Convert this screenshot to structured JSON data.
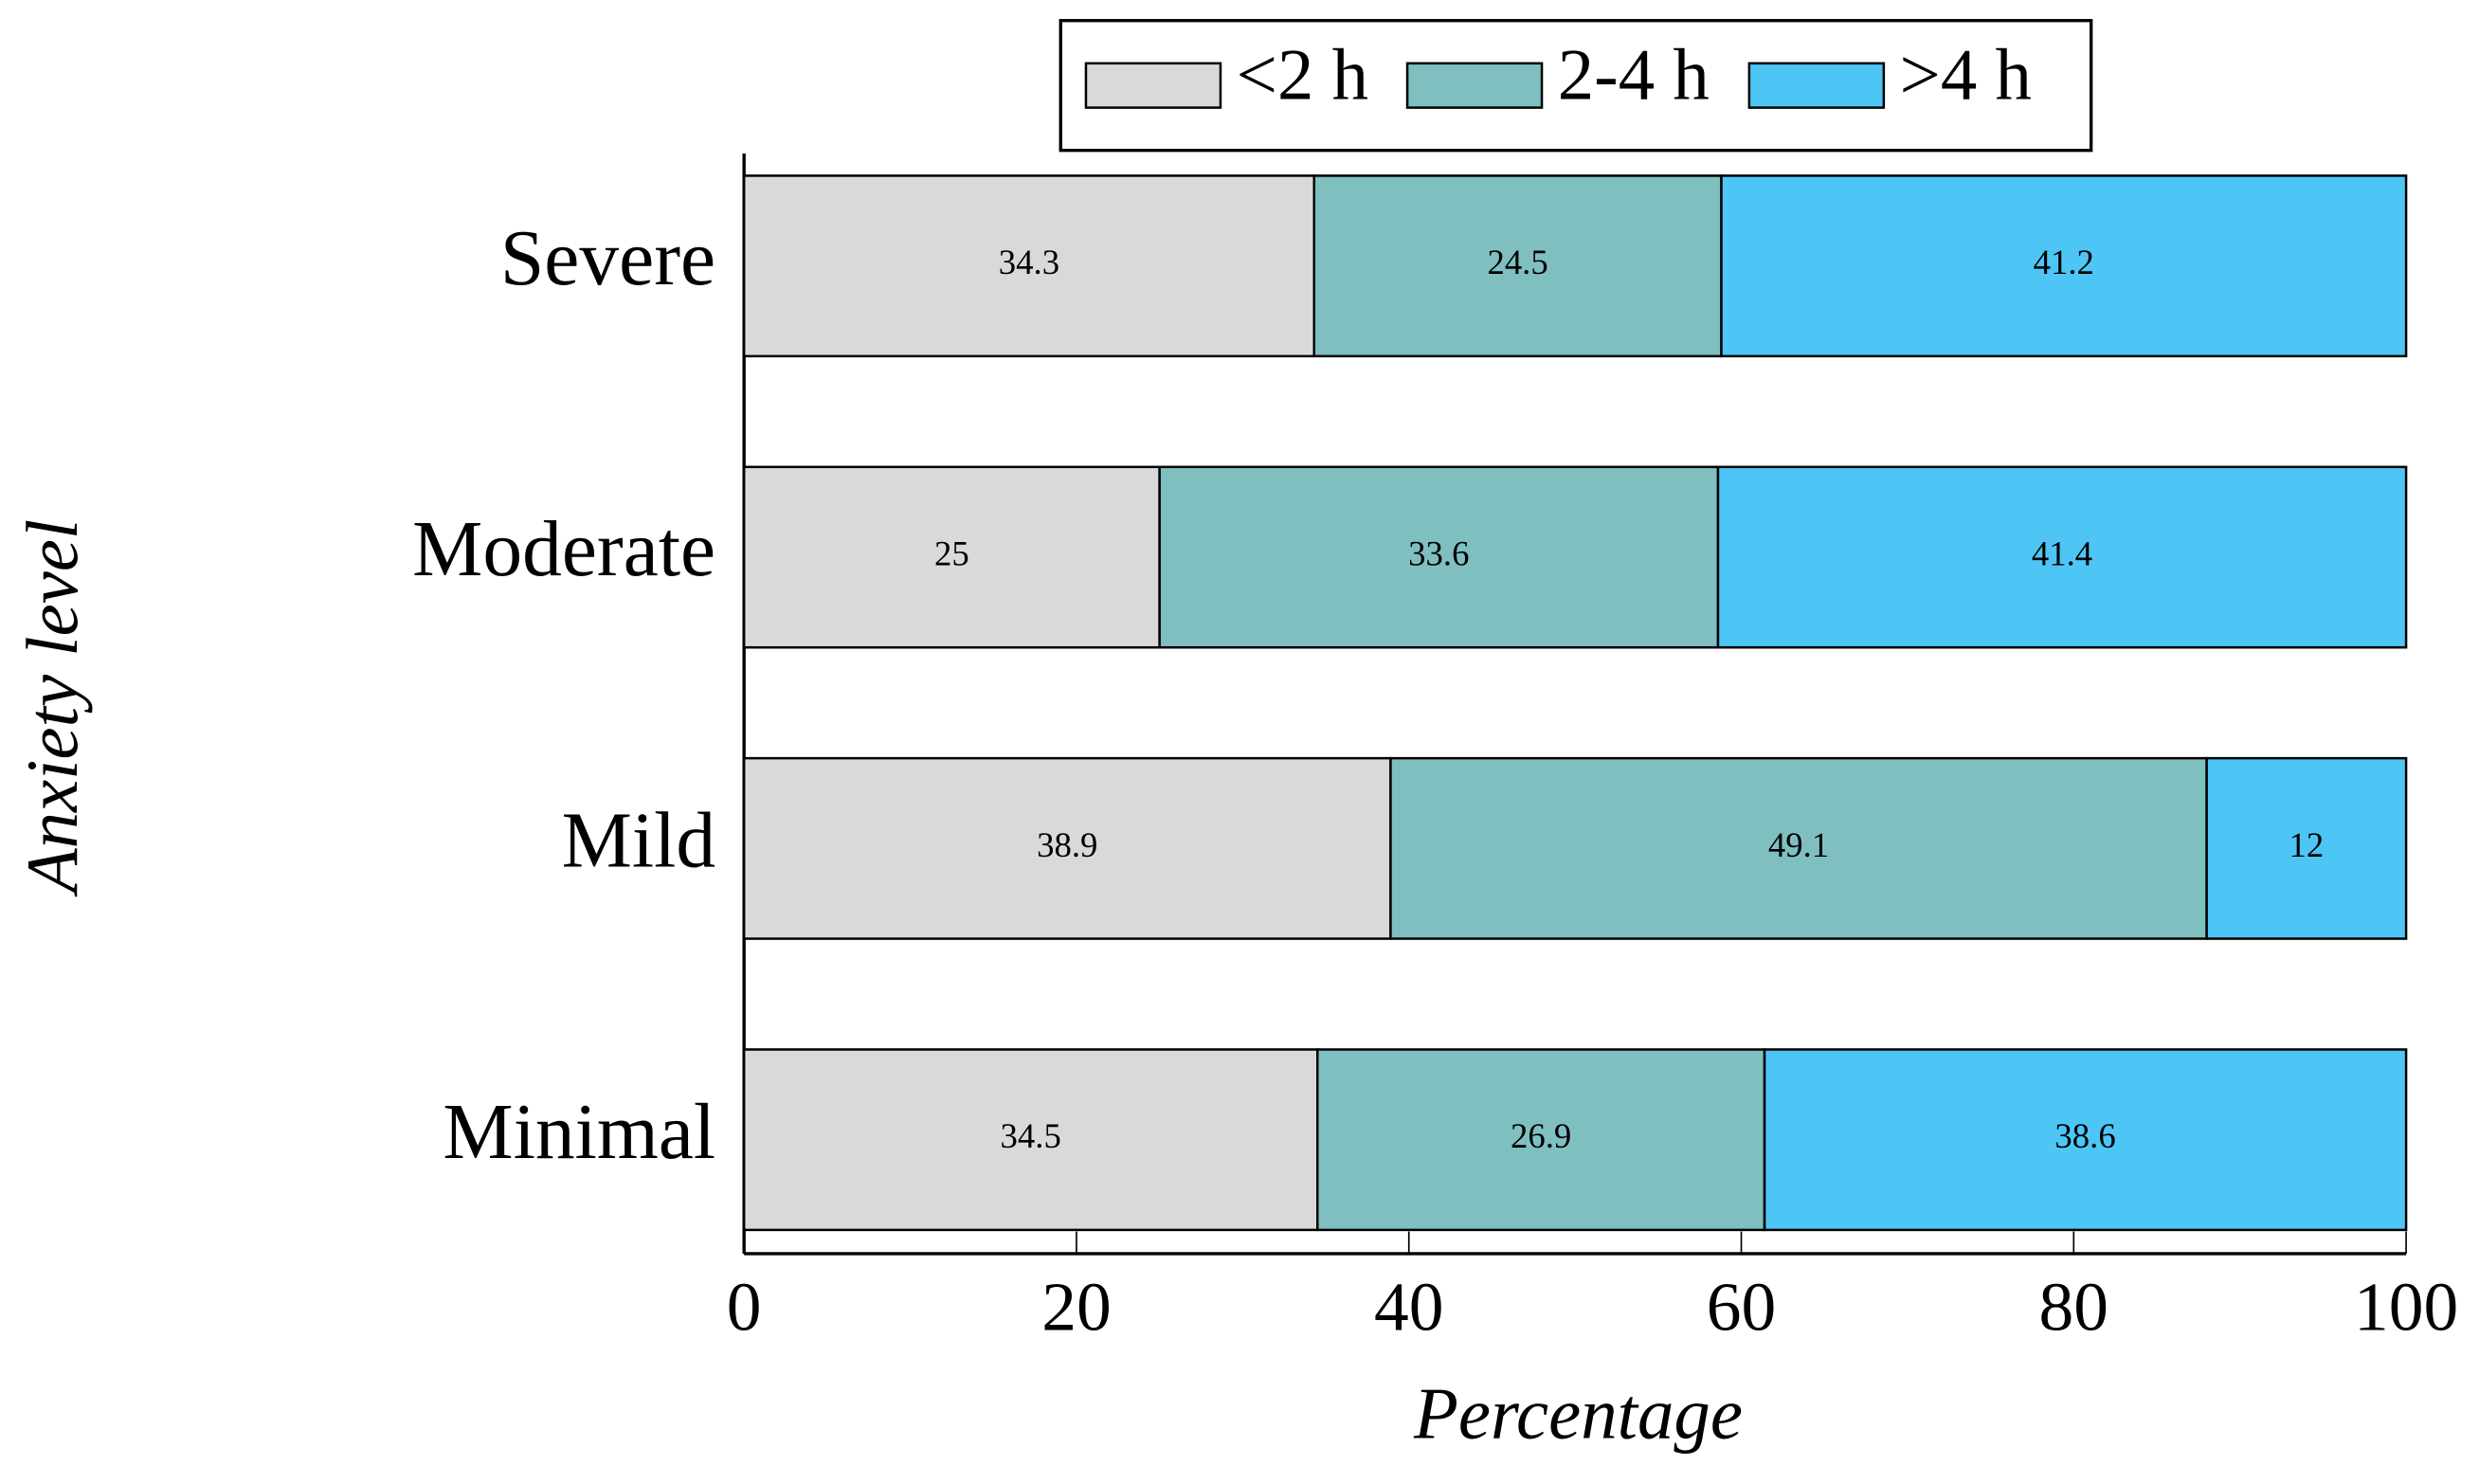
{
  "chart_data": {
    "type": "stacked-barh",
    "xlabel": "Percentage",
    "ylabel": "Anxiety level",
    "categories": [
      "Severe",
      "Moderate",
      "Mild",
      "Minimal"
    ],
    "series": [
      {
        "name": "<2 h",
        "color": "#d9d9d9",
        "values": [
          34.3,
          25,
          38.9,
          34.5
        ]
      },
      {
        "name": "2-4 h",
        "color": "#80bfbf",
        "values": [
          24.5,
          33.6,
          49.1,
          26.9
        ]
      },
      {
        "name": ">4 h",
        "color": "#4dc6f5",
        "values": [
          41.2,
          41.4,
          12,
          38.6
        ]
      }
    ],
    "xlim": [
      0,
      100
    ],
    "xticks": [
      0,
      20,
      40,
      60,
      80,
      100
    ],
    "legend": "top"
  }
}
